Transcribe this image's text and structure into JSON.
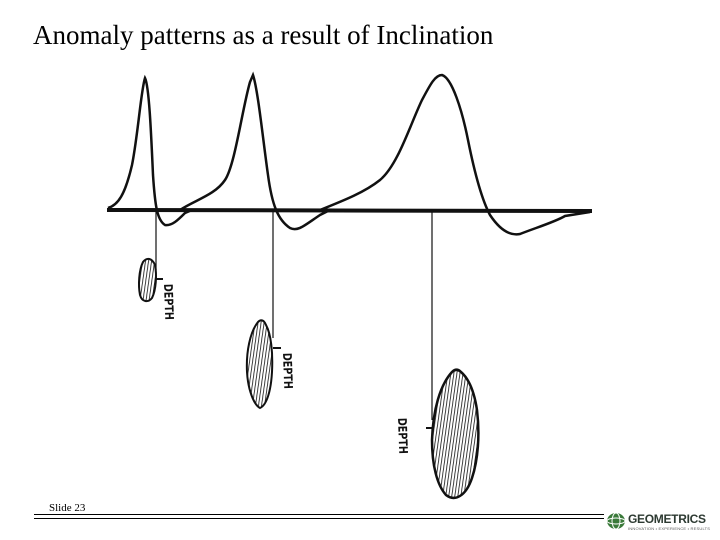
{
  "slide": {
    "title": "Anomaly patterns as a result of Inclination",
    "slide_number": "Slide 23"
  },
  "diagram": {
    "depth_label": "DEPTH",
    "anomalies": [
      {
        "id": "shallow",
        "depth_label": "DEPTH"
      },
      {
        "id": "medium",
        "depth_label": "DEPTH"
      },
      {
        "id": "deep",
        "depth_label": "DEPTH"
      }
    ]
  },
  "logo": {
    "name": "GEOMETRICS",
    "tagline": "INNOVATION • EXPERIENCE • RESULTS",
    "color": "#3a7a3a"
  }
}
